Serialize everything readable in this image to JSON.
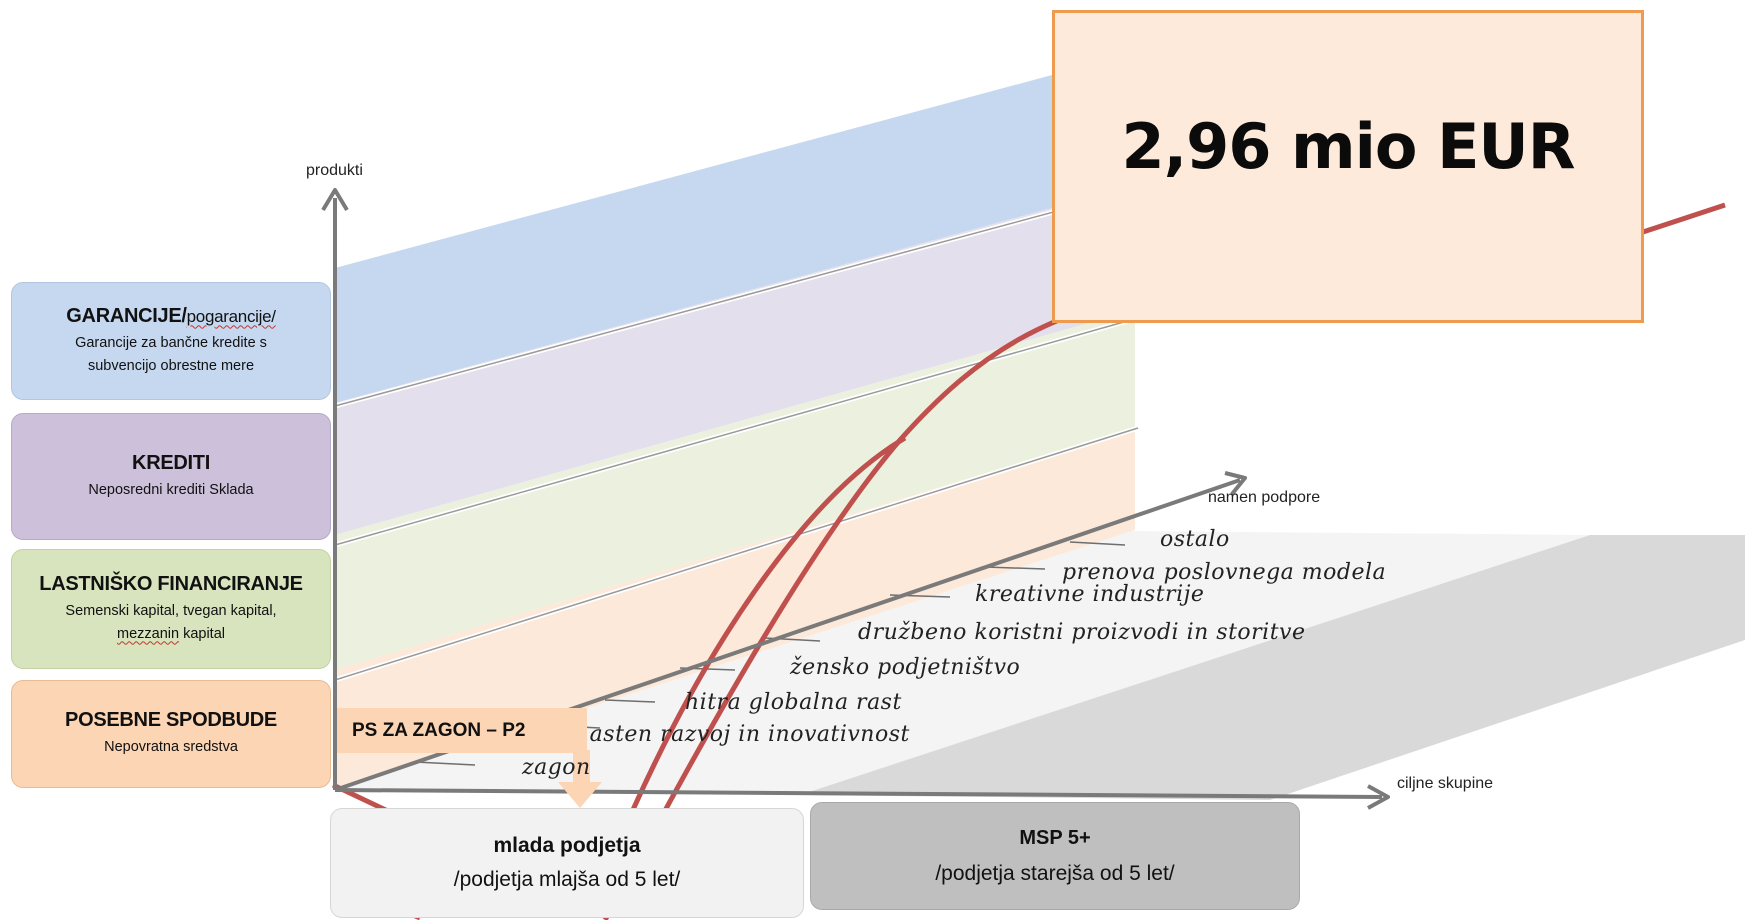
{
  "axes": {
    "y_label": "produkti",
    "x_label": "ciljne skupine",
    "z_label": "namen podpore"
  },
  "categories": [
    {
      "title": "GARANCIJE/",
      "title_suffix": "pogarancije/",
      "subtitle": "Garancije za bančne kredite s subvencijo obrestne mere",
      "color": "#c5d8f0"
    },
    {
      "title": "KREDITI",
      "subtitle": "Neposredni krediti Sklada",
      "color": "#ccc0da"
    },
    {
      "title": "LASTNIŠKO FINANCIRANJE",
      "subtitle_line1": "Semenski kapital, tvegan kapital,",
      "subtitle_line2": "mezzanin",
      "subtitle_line2_suffix": " kapital",
      "color": "#d7e4bd"
    },
    {
      "title": "POSEBNE SPODBUDE",
      "subtitle": "Nepovratna sredstva",
      "color": "#fcd5b4"
    }
  ],
  "purposes": [
    "ostalo",
    "prenova poslovnega modela",
    "kreativne industrije",
    "družbeno koristni proizvodi in storitve",
    "žensko podjetništvo",
    "hitra globalna rast",
    "hasten razvoj in inovativnost",
    "zagon"
  ],
  "target_groups": [
    {
      "title": "mlada podjetja",
      "subtitle": "/podjetja mlajša od 5 let/",
      "color": "#f2f2f2"
    },
    {
      "title": "MSP 5+",
      "subtitle": "/podjetja starejša od 5 let/",
      "color": "#bfbfbf"
    }
  ],
  "highlight": {
    "label": "PS ZA ZAGON – P2",
    "amount": "2,96 mio EUR"
  },
  "colors": {
    "curve": "#c0504d",
    "axis": "#707070",
    "amount_border": "#ef9b4f",
    "amount_fill": "#fdeadb"
  }
}
